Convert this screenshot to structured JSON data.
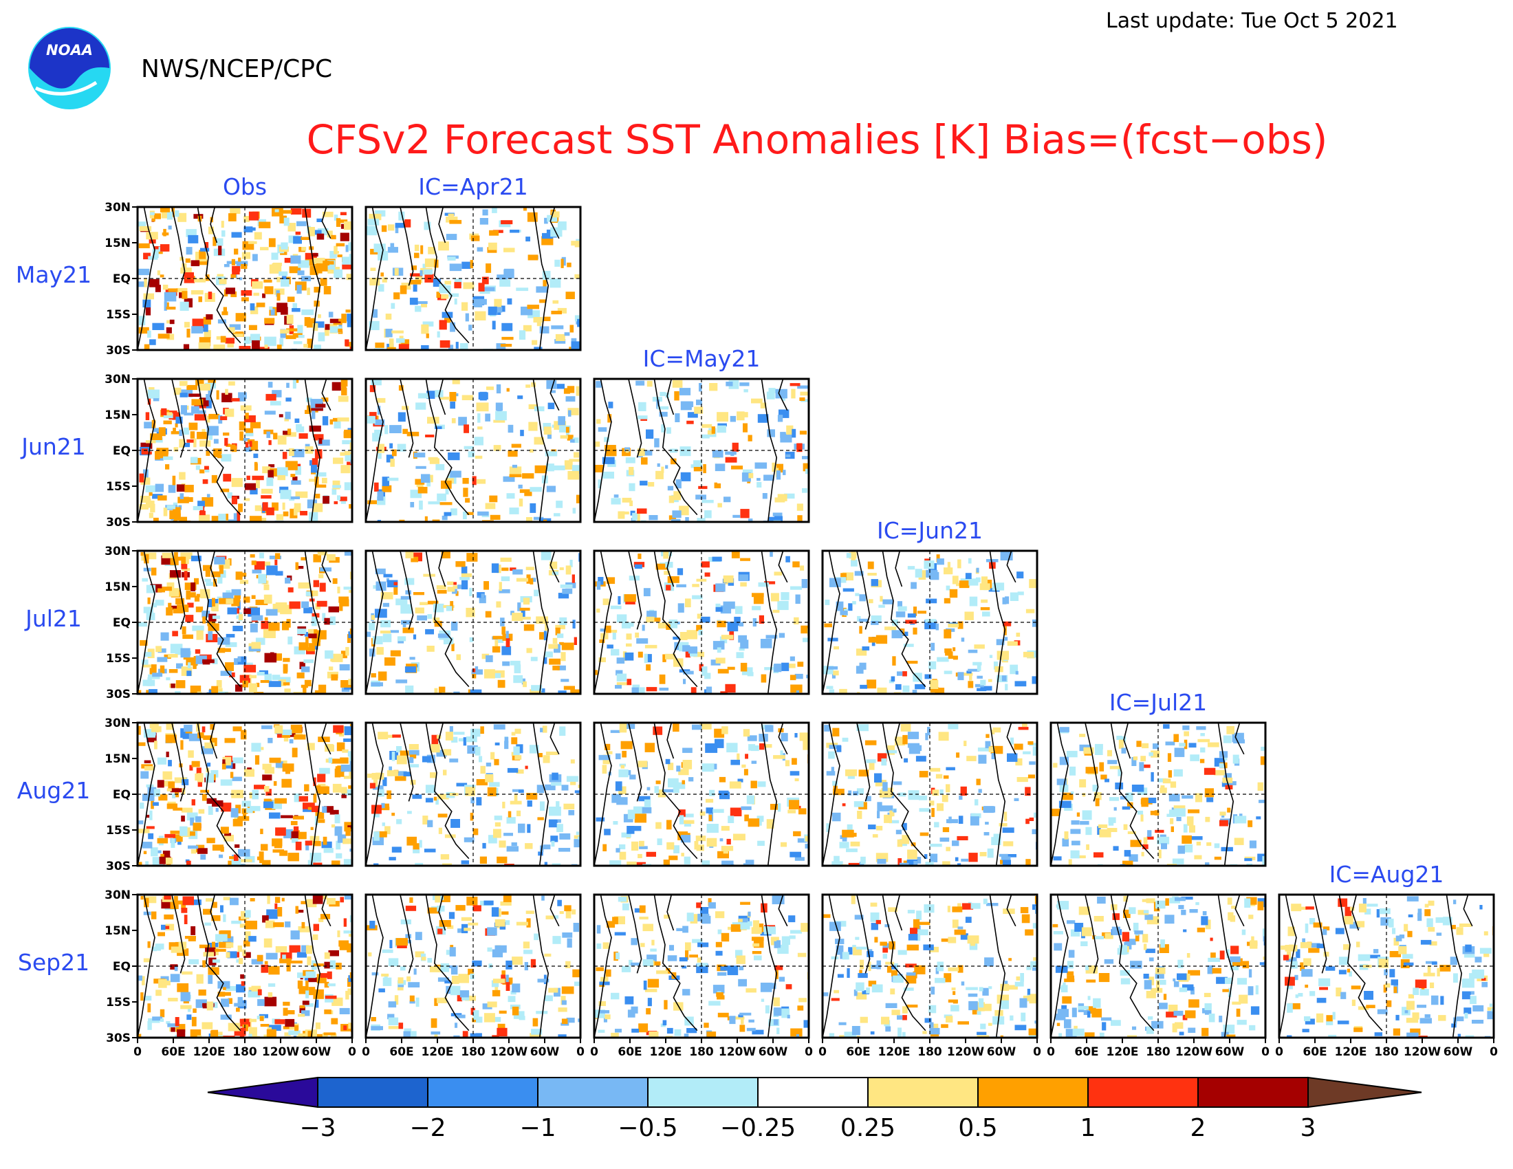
{
  "header": {
    "last_update": "Last update: Tue Oct 5 2021",
    "agency": "NWS/NCEP/CPC",
    "logo_text": "NOAA"
  },
  "chart_data": {
    "type": "heatmap",
    "title": "CFSv2 Forecast SST Anomalies [K] Bias=(fcst−obs)",
    "rows": [
      "May21",
      "Jun21",
      "Jul21",
      "Aug21",
      "Sep21"
    ],
    "column_titles": [
      "Obs",
      "IC=Apr21",
      "IC=May21",
      "IC=Jun21",
      "IC=Jul21",
      "IC=Aug21"
    ],
    "lat_ticks": [
      "30N",
      "15N",
      "EQ",
      "15S",
      "30S"
    ],
    "lon_ticks": [
      "0",
      "60E",
      "120E",
      "180",
      "120W",
      "60W",
      "0"
    ],
    "ylim": [
      -30,
      30
    ],
    "xlim": [
      0,
      360
    ],
    "grid": "dashed lines at EQ and 180",
    "colorbar": {
      "labels": [
        "−3",
        "−2",
        "−1",
        "−0.5",
        "−0.25",
        "0.25",
        "0.5",
        "1",
        "2",
        "3"
      ],
      "colors": [
        "#2a0a9a",
        "#1d64cf",
        "#3a8ef0",
        "#78b8f4",
        "#b2ecf8",
        "#ffffff",
        "#ffe682",
        "#ffa000",
        "#ff3210",
        "#a50000",
        "#6e3a26"
      ]
    },
    "panels": [
      {
        "row": 0,
        "col": 0,
        "label": "Obs May21"
      },
      {
        "row": 0,
        "col": 1,
        "label": "IC=Apr21 May21"
      },
      {
        "row": 1,
        "col": 0,
        "label": "Obs Jun21"
      },
      {
        "row": 1,
        "col": 1,
        "label": "IC=Apr21 Jun21"
      },
      {
        "row": 1,
        "col": 2,
        "label": "IC=May21 Jun21"
      },
      {
        "row": 2,
        "col": 0,
        "label": "Obs Jul21"
      },
      {
        "row": 2,
        "col": 1,
        "label": "IC=Apr21 Jul21"
      },
      {
        "row": 2,
        "col": 2,
        "label": "IC=May21 Jul21"
      },
      {
        "row": 2,
        "col": 3,
        "label": "IC=Jun21 Jul21"
      },
      {
        "row": 3,
        "col": 0,
        "label": "Obs Aug21"
      },
      {
        "row": 3,
        "col": 1,
        "label": "IC=Apr21 Aug21"
      },
      {
        "row": 3,
        "col": 2,
        "label": "IC=May21 Aug21"
      },
      {
        "row": 3,
        "col": 3,
        "label": "IC=Jun21 Aug21"
      },
      {
        "row": 3,
        "col": 4,
        "label": "IC=Jul21 Aug21"
      },
      {
        "row": 4,
        "col": 0,
        "label": "Obs Sep21"
      },
      {
        "row": 4,
        "col": 1,
        "label": "IC=Apr21 Sep21"
      },
      {
        "row": 4,
        "col": 2,
        "label": "IC=May21 Sep21"
      },
      {
        "row": 4,
        "col": 3,
        "label": "IC=Jun21 Sep21"
      },
      {
        "row": 4,
        "col": 4,
        "label": "IC=Jul21 Sep21"
      },
      {
        "row": 4,
        "col": 5,
        "label": "IC=Aug21 Sep21"
      }
    ]
  }
}
